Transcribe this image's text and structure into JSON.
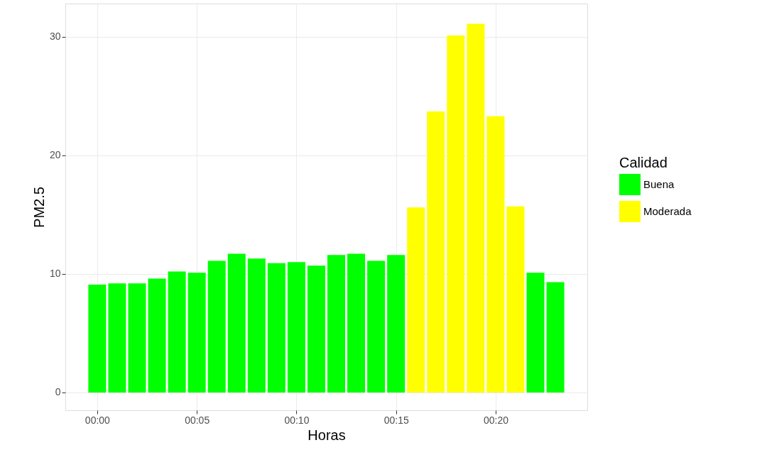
{
  "chart_data": {
    "type": "bar",
    "xlabel": "Horas",
    "ylabel": "PM2.5",
    "legend_title": "Calidad",
    "legend": "right",
    "grid": true,
    "x": [
      0,
      1,
      2,
      3,
      4,
      5,
      6,
      7,
      8,
      9,
      10,
      11,
      12,
      13,
      14,
      15,
      16,
      17,
      18,
      19,
      20,
      21,
      22,
      23
    ],
    "series": [
      {
        "name": "Buena",
        "color": "#00ff00",
        "values": [
          9.1,
          9.2,
          9.2,
          9.6,
          10.2,
          10.1,
          11.1,
          11.7,
          11.3,
          10.9,
          11.0,
          10.7,
          11.6,
          11.7,
          11.1,
          11.6,
          null,
          null,
          null,
          null,
          null,
          null,
          10.1,
          9.3
        ]
      },
      {
        "name": "Moderada",
        "color": "#ffff00",
        "values": [
          null,
          null,
          null,
          null,
          null,
          null,
          null,
          null,
          null,
          null,
          null,
          null,
          null,
          null,
          null,
          null,
          15.6,
          23.7,
          30.1,
          31.1,
          23.3,
          15.7,
          null,
          null
        ]
      }
    ],
    "xlim": [
      -1.6,
      24.6
    ],
    "xticks": [
      {
        "value": 0,
        "label": "00:00"
      },
      {
        "value": 5,
        "label": "00:05"
      },
      {
        "value": 10,
        "label": "00:10"
      },
      {
        "value": 15,
        "label": "00:15"
      },
      {
        "value": 20,
        "label": "00:20"
      }
    ],
    "ylim": [
      -1.5,
      32.8
    ],
    "yticks": [
      0,
      10,
      20,
      30
    ]
  }
}
